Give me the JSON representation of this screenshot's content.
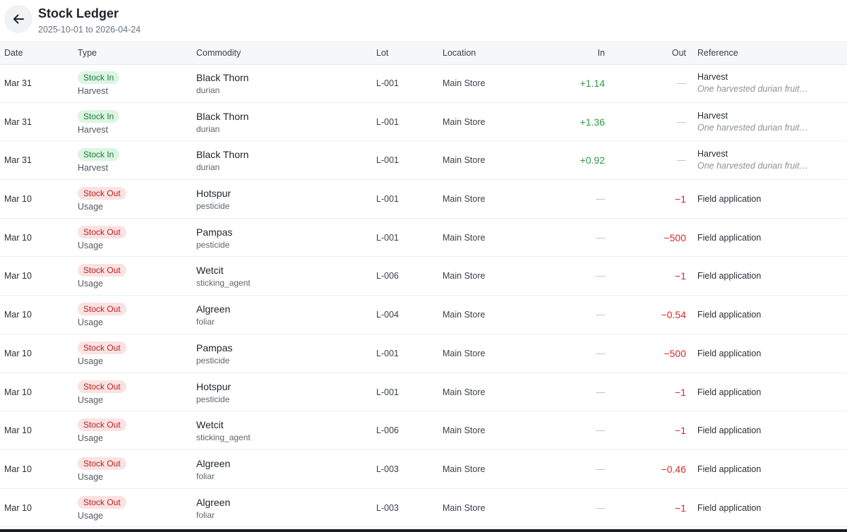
{
  "header": {
    "title": "Stock Ledger",
    "date_range": "2025-10-01 to 2026-04-24"
  },
  "columns": {
    "date": "Date",
    "type": "Type",
    "commodity": "Commodity",
    "lot": "Lot",
    "location": "Location",
    "in": "In",
    "out": "Out",
    "reference": "Reference"
  },
  "rows": [
    {
      "date": "Mar 31",
      "type": "Stock In",
      "kind": "in",
      "subtype": "Harvest",
      "commodity": "Black Thorn",
      "category": "durian",
      "lot": "L-001",
      "location": "Main Store",
      "in": "+1.14",
      "out": "—",
      "reference": "Harvest",
      "note": "One harvested durian fruit…"
    },
    {
      "date": "Mar 31",
      "type": "Stock In",
      "kind": "in",
      "subtype": "Harvest",
      "commodity": "Black Thorn",
      "category": "durian",
      "lot": "L-001",
      "location": "Main Store",
      "in": "+1.36",
      "out": "—",
      "reference": "Harvest",
      "note": "One harvested durian fruit…"
    },
    {
      "date": "Mar 31",
      "type": "Stock In",
      "kind": "in",
      "subtype": "Harvest",
      "commodity": "Black Thorn",
      "category": "durian",
      "lot": "L-001",
      "location": "Main Store",
      "in": "+0.92",
      "out": "—",
      "reference": "Harvest",
      "note": "One harvested durian fruit…"
    },
    {
      "date": "Mar 10",
      "type": "Stock Out",
      "kind": "out",
      "subtype": "Usage",
      "commodity": "Hotspur",
      "category": "pesticide",
      "lot": "L-001",
      "location": "Main Store",
      "in": "—",
      "out": "−1",
      "reference": "Field application",
      "note": ""
    },
    {
      "date": "Mar 10",
      "type": "Stock Out",
      "kind": "out",
      "subtype": "Usage",
      "commodity": "Pampas",
      "category": "pesticide",
      "lot": "L-001",
      "location": "Main Store",
      "in": "—",
      "out": "−500",
      "reference": "Field application",
      "note": ""
    },
    {
      "date": "Mar 10",
      "type": "Stock Out",
      "kind": "out",
      "subtype": "Usage",
      "commodity": "Wetcit",
      "category": "sticking_agent",
      "lot": "L-006",
      "location": "Main Store",
      "in": "—",
      "out": "−1",
      "reference": "Field application",
      "note": ""
    },
    {
      "date": "Mar 10",
      "type": "Stock Out",
      "kind": "out",
      "subtype": "Usage",
      "commodity": "Algreen",
      "category": "foliar",
      "lot": "L-004",
      "location": "Main Store",
      "in": "—",
      "out": "−0.54",
      "reference": "Field application",
      "note": ""
    },
    {
      "date": "Mar 10",
      "type": "Stock Out",
      "kind": "out",
      "subtype": "Usage",
      "commodity": "Pampas",
      "category": "pesticide",
      "lot": "L-001",
      "location": "Main Store",
      "in": "—",
      "out": "−500",
      "reference": "Field application",
      "note": ""
    },
    {
      "date": "Mar 10",
      "type": "Stock Out",
      "kind": "out",
      "subtype": "Usage",
      "commodity": "Hotspur",
      "category": "pesticide",
      "lot": "L-001",
      "location": "Main Store",
      "in": "—",
      "out": "−1",
      "reference": "Field application",
      "note": ""
    },
    {
      "date": "Mar 10",
      "type": "Stock Out",
      "kind": "out",
      "subtype": "Usage",
      "commodity": "Wetcit",
      "category": "sticking_agent",
      "lot": "L-006",
      "location": "Main Store",
      "in": "—",
      "out": "−1",
      "reference": "Field application",
      "note": ""
    },
    {
      "date": "Mar 10",
      "type": "Stock Out",
      "kind": "out",
      "subtype": "Usage",
      "commodity": "Algreen",
      "category": "foliar",
      "lot": "L-003",
      "location": "Main Store",
      "in": "—",
      "out": "−0.46",
      "reference": "Field application",
      "note": ""
    },
    {
      "date": "Mar 10",
      "type": "Stock Out",
      "kind": "out",
      "subtype": "Usage",
      "commodity": "Algreen",
      "category": "foliar",
      "lot": "L-003",
      "location": "Main Store",
      "in": "—",
      "out": "−1",
      "reference": "Field application",
      "note": ""
    }
  ],
  "icons": {
    "back": "arrow-left-icon"
  },
  "colors": {
    "in": "#2f9a47",
    "out": "#d62a2a",
    "badge_in_bg": "#dcf5e3",
    "badge_out_bg": "#fbe2e2"
  }
}
